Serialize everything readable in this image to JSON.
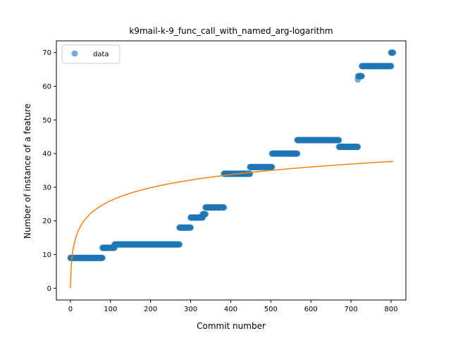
{
  "chart_data": {
    "type": "scatter",
    "title": "k9mail-k-9_func_call_with_named_arg-logarithm",
    "xlabel": "Commit number",
    "ylabel": "Number of instance of a feature",
    "xlim": [
      -35,
      837
    ],
    "ylim": [
      -3.5,
      73.5
    ],
    "xticks": [
      0,
      100,
      200,
      300,
      400,
      500,
      600,
      700,
      800
    ],
    "yticks": [
      0,
      10,
      20,
      30,
      40,
      50,
      60,
      70
    ],
    "grid": false,
    "legend": {
      "placement": "top-left",
      "entries": [
        "data"
      ]
    },
    "colors": {
      "data": "#1f77b4",
      "fit": "#ff7f0e"
    },
    "series": [
      {
        "name": "data",
        "kind": "scatter",
        "segments": [
          {
            "x_start": 0,
            "x_end": 80,
            "y": 9
          },
          {
            "x_start": 80,
            "x_end": 110,
            "y": 12
          },
          {
            "x_start": 110,
            "x_end": 272,
            "y": 13
          },
          {
            "x_start": 272,
            "x_end": 300,
            "y": 18
          },
          {
            "x_start": 300,
            "x_end": 330,
            "y": 21
          },
          {
            "x_start": 330,
            "x_end": 337,
            "y": 22
          },
          {
            "x_start": 337,
            "x_end": 383,
            "y": 24
          },
          {
            "x_start": 383,
            "x_end": 448,
            "y": 34
          },
          {
            "x_start": 448,
            "x_end": 503,
            "y": 36
          },
          {
            "x_start": 503,
            "x_end": 566,
            "y": 40
          },
          {
            "x_start": 566,
            "x_end": 670,
            "y": 44
          },
          {
            "x_start": 670,
            "x_end": 717,
            "y": 42
          },
          {
            "x_start": 717,
            "x_end": 717,
            "y": 62
          },
          {
            "x_start": 718,
            "x_end": 727,
            "y": 63
          },
          {
            "x_start": 727,
            "x_end": 800,
            "y": 66
          },
          {
            "x_start": 800,
            "x_end": 805,
            "y": 70
          }
        ]
      },
      {
        "kind": "line",
        "x_range": [
          0,
          805
        ],
        "model": "a + b*ln(x+1)",
        "a": 0,
        "b": 5.63
      }
    ]
  }
}
